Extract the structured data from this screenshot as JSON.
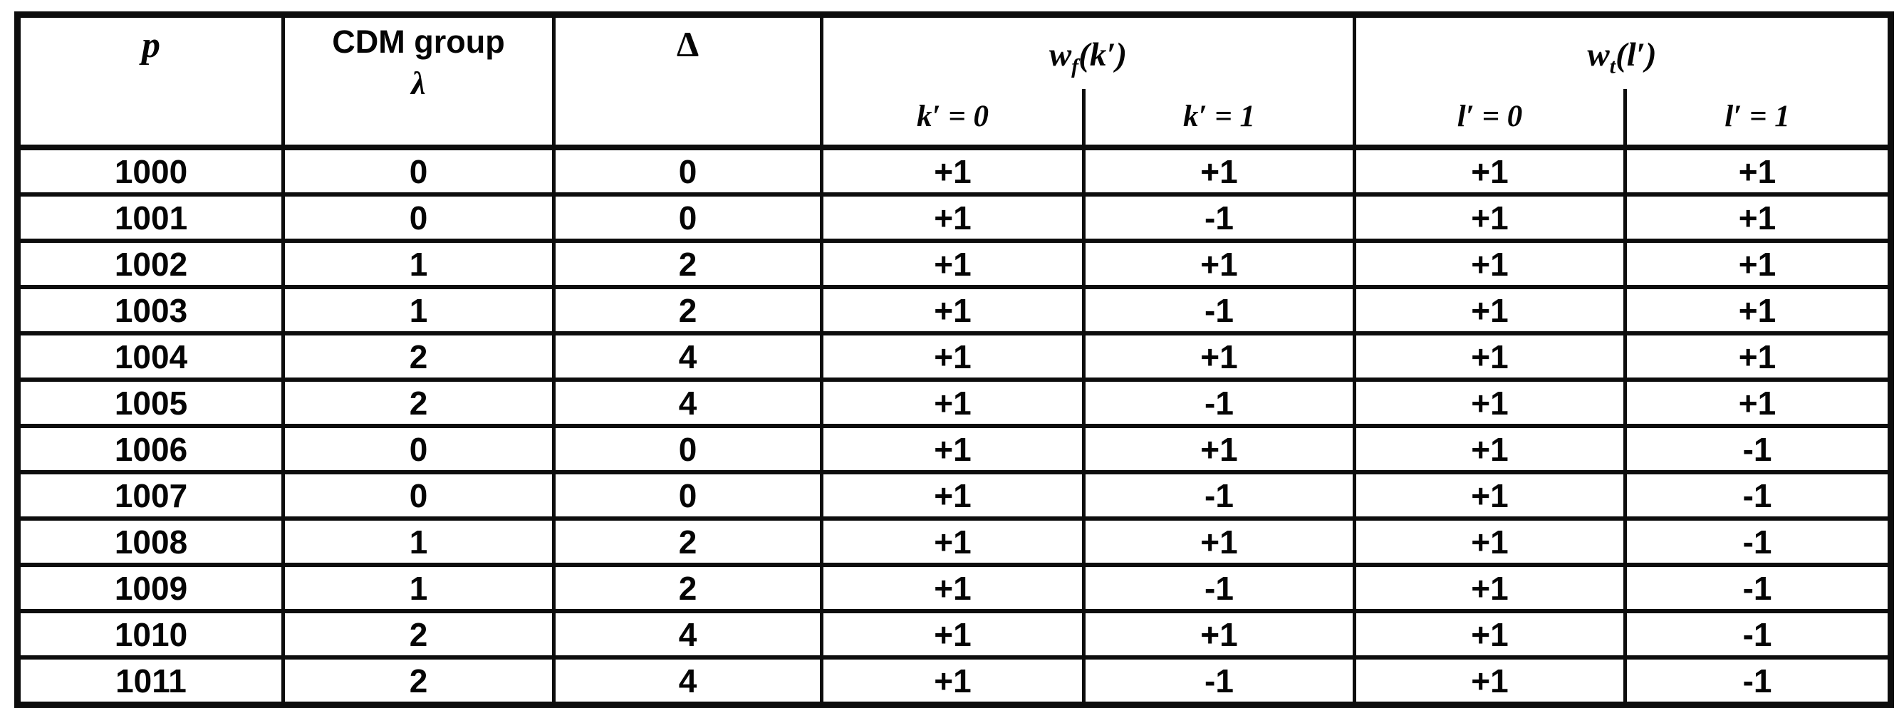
{
  "table": {
    "columns": {
      "p": "p",
      "cdm_group_line1": "CDM group",
      "cdm_group_line2": "λ",
      "delta": "Δ",
      "wf": {
        "base": "w",
        "sub": "f",
        "arg": "(k′)"
      },
      "wt": {
        "base": "w",
        "sub": "t",
        "arg": "(l′)"
      },
      "sub_k0": "k′ = 0",
      "sub_k1": "k′ = 1",
      "sub_l0": "l′ = 0",
      "sub_l1": "l′ = 1"
    },
    "rows": [
      [
        "1000",
        "0",
        "0",
        "+1",
        "+1",
        "+1",
        "+1"
      ],
      [
        "1001",
        "0",
        "0",
        "+1",
        "-1",
        "+1",
        "+1"
      ],
      [
        "1002",
        "1",
        "2",
        "+1",
        "+1",
        "+1",
        "+1"
      ],
      [
        "1003",
        "1",
        "2",
        "+1",
        "-1",
        "+1",
        "+1"
      ],
      [
        "1004",
        "2",
        "4",
        "+1",
        "+1",
        "+1",
        "+1"
      ],
      [
        "1005",
        "2",
        "4",
        "+1",
        "-1",
        "+1",
        "+1"
      ],
      [
        "1006",
        "0",
        "0",
        "+1",
        "+1",
        "+1",
        "-1"
      ],
      [
        "1007",
        "0",
        "0",
        "+1",
        "-1",
        "+1",
        "-1"
      ],
      [
        "1008",
        "1",
        "2",
        "+1",
        "+1",
        "+1",
        "-1"
      ],
      [
        "1009",
        "1",
        "2",
        "+1",
        "-1",
        "+1",
        "-1"
      ],
      [
        "1010",
        "2",
        "4",
        "+1",
        "+1",
        "+1",
        "-1"
      ],
      [
        "1011",
        "2",
        "4",
        "+1",
        "-1",
        "+1",
        "-1"
      ]
    ],
    "colors": {
      "ink": "#0d0d0d",
      "paper": "#ffffff"
    }
  }
}
